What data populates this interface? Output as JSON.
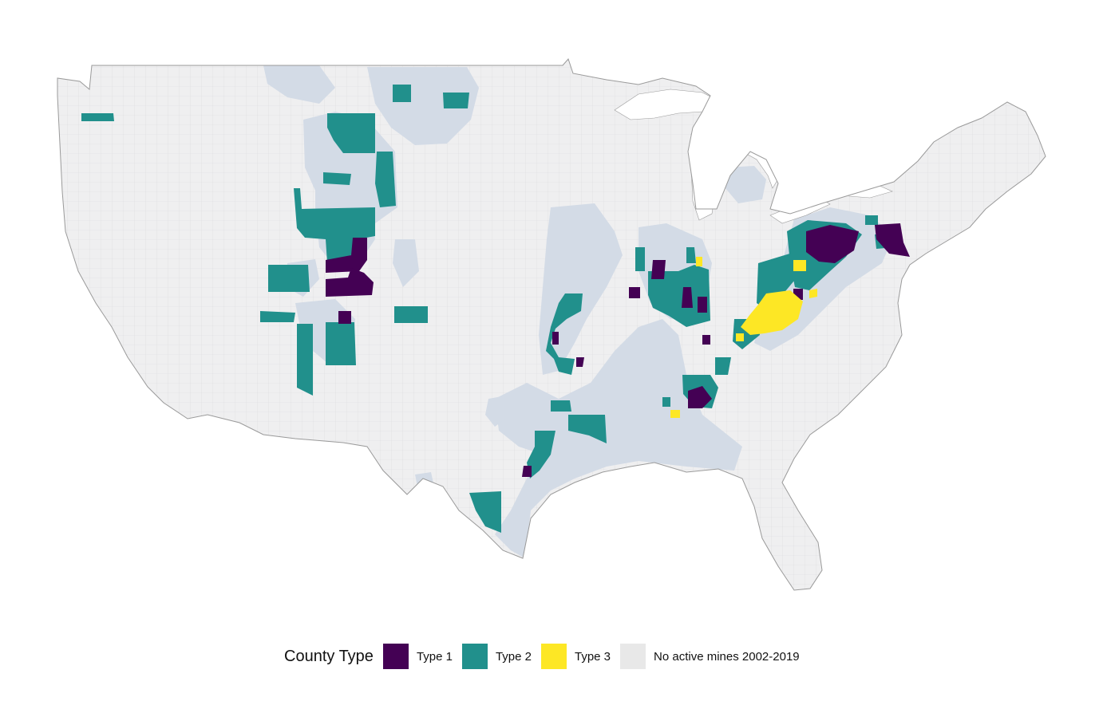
{
  "legend": {
    "title": "County Type",
    "items": [
      {
        "label": "Type 1",
        "color": "#440154"
      },
      {
        "label": "Type 2",
        "color": "#21908C"
      },
      {
        "label": "Type 3",
        "color": "#FDE725"
      },
      {
        "label": "No active mines 2002-2019",
        "color": "#E8E8E8"
      }
    ]
  },
  "colors": {
    "land": "#EFEFF0",
    "county_border": "#DADADE",
    "coal_basin": "#D3DBE6",
    "water": "#FFFFFF",
    "outline": "#9A9A9A"
  }
}
